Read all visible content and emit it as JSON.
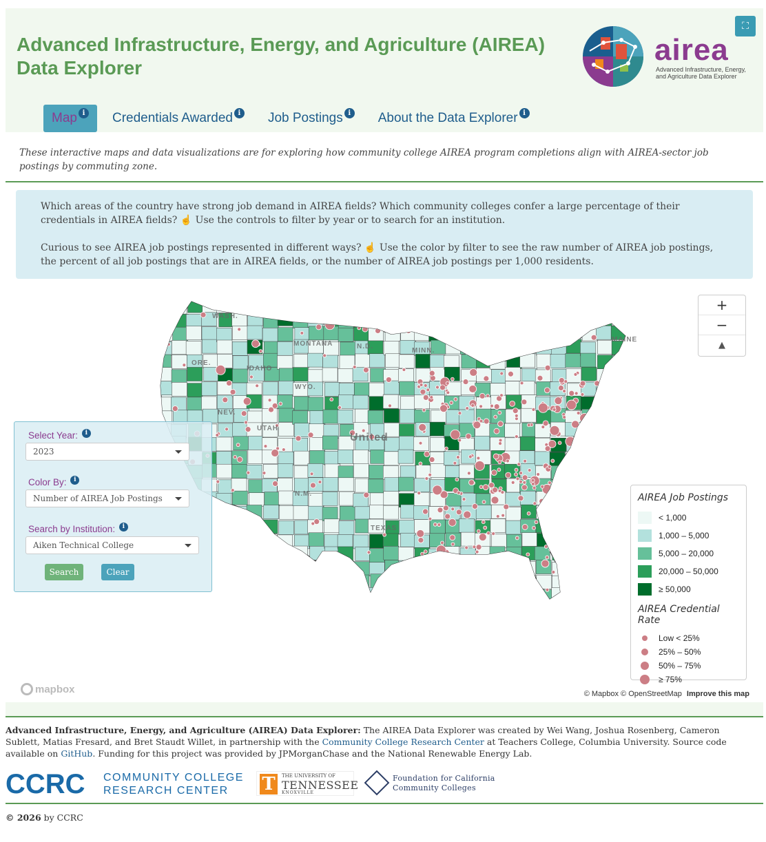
{
  "header": {
    "title": "Advanced Infrastructure, Energy, and Agriculture (AIREA) Data Explorer",
    "logo_word": "airea",
    "logo_sub": "Advanced Infrastructure, Energy, and Agriculture Data Explorer",
    "expand_icon": "expand-icon"
  },
  "nav": {
    "tabs": [
      {
        "label": "Map",
        "active": true
      },
      {
        "label": "Credentials Awarded",
        "active": false
      },
      {
        "label": "Job Postings",
        "active": false
      },
      {
        "label": "About the Data Explorer",
        "active": false
      }
    ],
    "info_glyph": "i"
  },
  "intro": "These interactive maps and data visualizations are for exploring how community college AIREA program completions align with AIREA-sector job postings by commuting zone.",
  "callout": {
    "p1_a": "Which areas of the country have strong job demand in AIREA fields? Which community colleges confer a large percentage of their credentials in AIREA fields?",
    "p1_b": "Use the controls to filter by year or to search for an institution.",
    "p2_a": "Curious to see AIREA job postings represented in different ways?",
    "p2_b": "Use the color by filter to see the raw number of AIREA job postings, the percent of all job postings that are in AIREA fields, or the number of AIREA job postings per 1,000 residents.",
    "pointer_glyph": "☝"
  },
  "map": {
    "zoom_in": "+",
    "zoom_out": "−",
    "compass": "▲",
    "state_labels": [
      "WASH.",
      "MONTANA",
      "N.D.",
      "MINN.",
      "ORE.",
      "IDAHO",
      "WYO.",
      "NEV.",
      "UTAH",
      "N.M.",
      "MAINE",
      "United",
      "TEXAS"
    ],
    "mapbox_label": "mapbox",
    "attribution": "© Mapbox © OpenStreetMap",
    "improve_link": "Improve this map"
  },
  "filters": {
    "year_label": "Select Year:",
    "year_value": "2023",
    "color_label": "Color By:",
    "color_value": "Number of AIREA Job Postings",
    "institution_label": "Search by Institution:",
    "institution_value": "Aiken Technical College",
    "search_button": "Search",
    "clear_button": "Clear"
  },
  "legend": {
    "postings_title": "AIREA Job Postings",
    "postings": [
      {
        "label": "< 1,000",
        "color": "#edf8f5"
      },
      {
        "label": "1,000 – 5,000",
        "color": "#b3e1dd"
      },
      {
        "label": "5,000 – 20,000",
        "color": "#66c09a"
      },
      {
        "label": "20,000 – 50,000",
        "color": "#2c9e5a"
      },
      {
        "label": "≥ 50,000",
        "color": "#006d2c"
      }
    ],
    "rate_title": "AIREA Credential Rate",
    "rates": [
      {
        "label": "Low < 25%",
        "size": 8
      },
      {
        "label": "25% – 50%",
        "size": 10
      },
      {
        "label": "50% – 75%",
        "size": 12
      },
      {
        "label": "≥ 75%",
        "size": 14
      }
    ],
    "dot_color": "#cc7e85"
  },
  "footer": {
    "lead": "Advanced Infrastructure, Energy, and Agriculture (AIREA) Data Explorer:",
    "text_a": " The AIREA Data Explorer was created by Wei Wang, Joshua Rosenberg, Cameron Sublett, Matias Fresard, and Bret Staudt Willet, in partnership with the ",
    "link_ccrc": "Community College Research Center",
    "text_b": " at Teachers College, Columbia University. Source code available on ",
    "link_github": "GitHub",
    "text_c": ". Funding for this project was provided by JPMorganChase and the National Renewable Energy Lab.",
    "ccrc_big": "CCRC",
    "ccrc_line1": "COMMUNITY COLLEGE",
    "ccrc_line2": "RESEARCH CENTER",
    "utk_line1": "THE UNIVERSITY OF",
    "utk_line2": "TENNESSEE",
    "utk_line3": "KNOXVILLE",
    "utk_mark": "T",
    "fcc_line1": "Foundation for California",
    "fcc_line2": "Community Colleges",
    "copyright_year": "© 2026",
    "copyright_by": "by CCRC"
  }
}
